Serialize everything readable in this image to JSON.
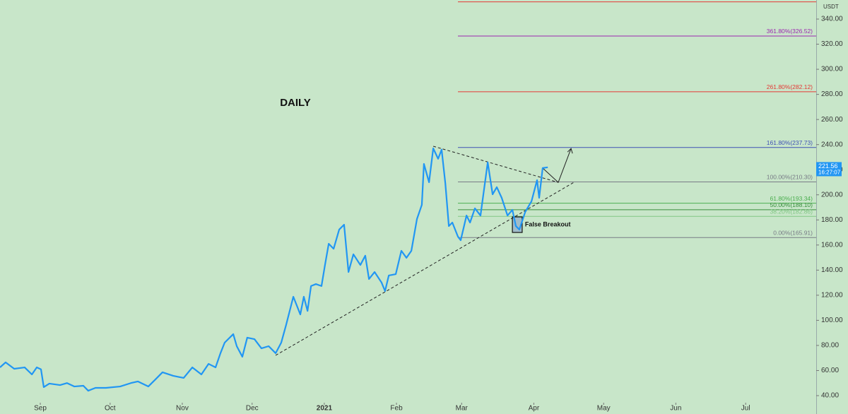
{
  "chart_data": {
    "type": "line",
    "title": "DAILY",
    "y_axis_unit": "USDT",
    "xlim": [
      -17.3,
      333.3
    ],
    "ylim": [
      35.5,
      355.2
    ],
    "xticks": [
      {
        "value": 0,
        "label": "Sep"
      },
      {
        "value": 30,
        "label": "Oct"
      },
      {
        "value": 61,
        "label": "Nov"
      },
      {
        "value": 91,
        "label": "Dec"
      },
      {
        "value": 122,
        "label": "2021"
      },
      {
        "value": 153,
        "label": "Feb"
      },
      {
        "value": 181,
        "label": "Mar"
      },
      {
        "value": 212,
        "label": "Apr"
      },
      {
        "value": 242,
        "label": "May"
      },
      {
        "value": 273,
        "label": "Jun"
      },
      {
        "value": 303,
        "label": "Jul"
      }
    ],
    "yticks": [
      {
        "value": 40,
        "label": "40.00"
      },
      {
        "value": 60,
        "label": "60.00"
      },
      {
        "value": 80,
        "label": "80.00"
      },
      {
        "value": 100,
        "label": "100.00"
      },
      {
        "value": 120,
        "label": "120.00"
      },
      {
        "value": 140,
        "label": "140.00"
      },
      {
        "value": 160,
        "label": "160.00"
      },
      {
        "value": 180,
        "label": "180.00"
      },
      {
        "value": 200,
        "label": "200.00"
      },
      {
        "value": 220,
        "label": "220.00"
      },
      {
        "value": 240,
        "label": "240.00"
      },
      {
        "value": 260,
        "label": "260.00"
      },
      {
        "value": 280,
        "label": "280.00"
      },
      {
        "value": 300,
        "label": "300.00"
      },
      {
        "value": 320,
        "label": "320.00"
      },
      {
        "value": 340,
        "label": "340.00"
      }
    ],
    "series": [
      {
        "color": "#2196f3",
        "x": [
          -17.3,
          -14.9,
          -11.2,
          -6.7,
          -3.6,
          -1.5,
          0.3,
          1.5,
          3.9,
          8.5,
          11.5,
          14.6,
          18.5,
          20.6,
          23.7,
          28.2,
          34.3,
          38.9,
          41.9,
          46.4,
          49.5,
          52.5,
          57.1,
          61.6,
          65.3,
          69.2,
          72.3,
          75.3,
          77.4,
          79.2,
          82.9,
          84.4,
          86.8,
          88.9,
          92,
          95,
          98.1,
          101.1,
          103.5,
          105.6,
          108.7,
          111.7,
          113.2,
          114.8,
          116.3,
          118.4,
          120.8,
          122.3,
          123.9,
          126,
          128.4,
          130.5,
          132.4,
          134.5,
          137.5,
          139.6,
          141.2,
          143.6,
          146.6,
          148.1,
          149.7,
          152.7,
          155.1,
          157.3,
          159.4,
          161.8,
          163.9,
          164.8,
          167,
          168.8,
          170.9,
          172.4,
          174,
          175.5,
          177,
          179.4,
          180.6,
          183.1,
          184.6,
          186.7,
          189.1,
          192.2,
          194.3,
          196.1,
          198.2,
          200.7,
          202.8,
          204.3,
          205.8,
          208.3,
          211,
          213.4,
          214.3,
          215.8,
          218
        ],
        "values": [
          62.5,
          66.5,
          61.4,
          62.5,
          56.9,
          62.5,
          61,
          46.8,
          49.6,
          48.4,
          50,
          47.3,
          47.9,
          43.9,
          46.2,
          46.2,
          47.3,
          50,
          51.3,
          47.3,
          53,
          58.6,
          55.8,
          54.1,
          62.5,
          56.9,
          65.3,
          62.5,
          73.8,
          82.2,
          89,
          79.4,
          71,
          86.2,
          85,
          77.7,
          79.4,
          73.8,
          82.2,
          96.3,
          118.8,
          104.7,
          118.8,
          107.5,
          127.3,
          128.9,
          127.3,
          144.1,
          161,
          157,
          172.3,
          176.2,
          138.5,
          152.6,
          144.1,
          151.5,
          132.9,
          138.5,
          130.1,
          123.3,
          135.7,
          136.8,
          155.4,
          149.8,
          155.4,
          180.7,
          192,
          224.6,
          210,
          237,
          228.7,
          236,
          209,
          175.1,
          177.9,
          166.7,
          163.8,
          183.5,
          177.9,
          189.2,
          183.5,
          225.8,
          200.4,
          206.1,
          197.6,
          183.5,
          188,
          175.1,
          172.3,
          186.3,
          194.8,
          211.7,
          197.6,
          221.3,
          221.9
        ]
      }
    ],
    "last_price": {
      "value": 221.56,
      "time": "16:27:07"
    },
    "fib_start_x": 179.4,
    "fib_levels": [
      {
        "label": "361.80%(326.52)",
        "value": 326.52,
        "color": "#9c27b0"
      },
      {
        "label": "261.80%(282.12)",
        "value": 282.12,
        "color": "#e53935"
      },
      {
        "label": "161.80%(237.73)",
        "value": 237.73,
        "color": "#3f51b5"
      },
      {
        "label": "100.00%(210.30)",
        "value": 210.3,
        "color": "#787b86"
      },
      {
        "label": "61.80%(193.34)",
        "value": 193.34,
        "color": "#4caf50"
      },
      {
        "label": "50.00%(188.10)",
        "value": 188.1,
        "color": "#388e3c"
      },
      {
        "label": "38.20%(182.86)",
        "value": 182.86,
        "color": "#81c784"
      },
      {
        "label": "0.00%(165.91)",
        "value": 165.91,
        "color": "#787b86"
      }
    ],
    "top_level": {
      "value": 353.7,
      "color": "#e53935"
    },
    "trendlines": [
      {
        "x": [
          101.1,
          229.2
        ],
        "y": [
          72.1,
          209.9
        ]
      },
      {
        "x": [
          168.8,
          222.5
        ],
        "y": [
          238.7,
          209.9
        ]
      }
    ],
    "projection": {
      "x": [
        215.8,
        222.5,
        228
      ],
      "y": [
        221.3,
        209.9,
        236.9
      ]
    },
    "annotation": {
      "text": "False Breakout",
      "x": [
        202.8,
        207
      ],
      "y": [
        170,
        182.4
      ]
    }
  }
}
